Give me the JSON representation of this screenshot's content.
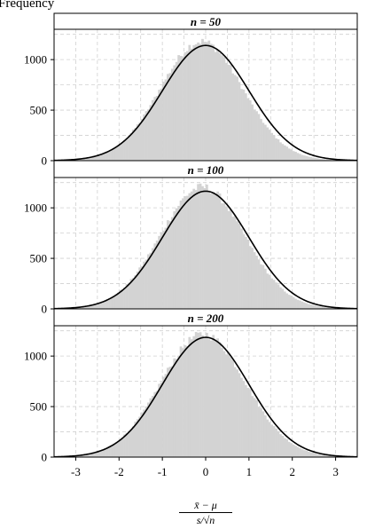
{
  "chart_data": {
    "type": "histogram-facets",
    "ylabel": "Frequency",
    "xlabel_numerator": "x̄ − μ",
    "xlabel_denominator": "s/√n",
    "xlim": [
      -3.5,
      3.5
    ],
    "ylim": [
      0,
      1300
    ],
    "x_ticks": [
      -3,
      -2,
      -1,
      0,
      1,
      2,
      3
    ],
    "y_ticks": [
      0,
      500,
      1000
    ],
    "grid": true,
    "curve": {
      "name": "normal density",
      "mean": 0,
      "sd": 1,
      "peak": 1140
    },
    "panels": [
      {
        "label": "n = 50",
        "curve_peak": 1140,
        "hist_peak": 1180,
        "hist_mean": -0.1,
        "hist_sd": 0.95
      },
      {
        "label": "n = 100",
        "curve_peak": 1165,
        "hist_peak": 1205,
        "hist_mean": -0.08,
        "hist_sd": 0.97
      },
      {
        "label": "n = 200",
        "curve_peak": 1185,
        "hist_peak": 1215,
        "hist_mean": -0.06,
        "hist_sd": 0.98
      }
    ]
  }
}
